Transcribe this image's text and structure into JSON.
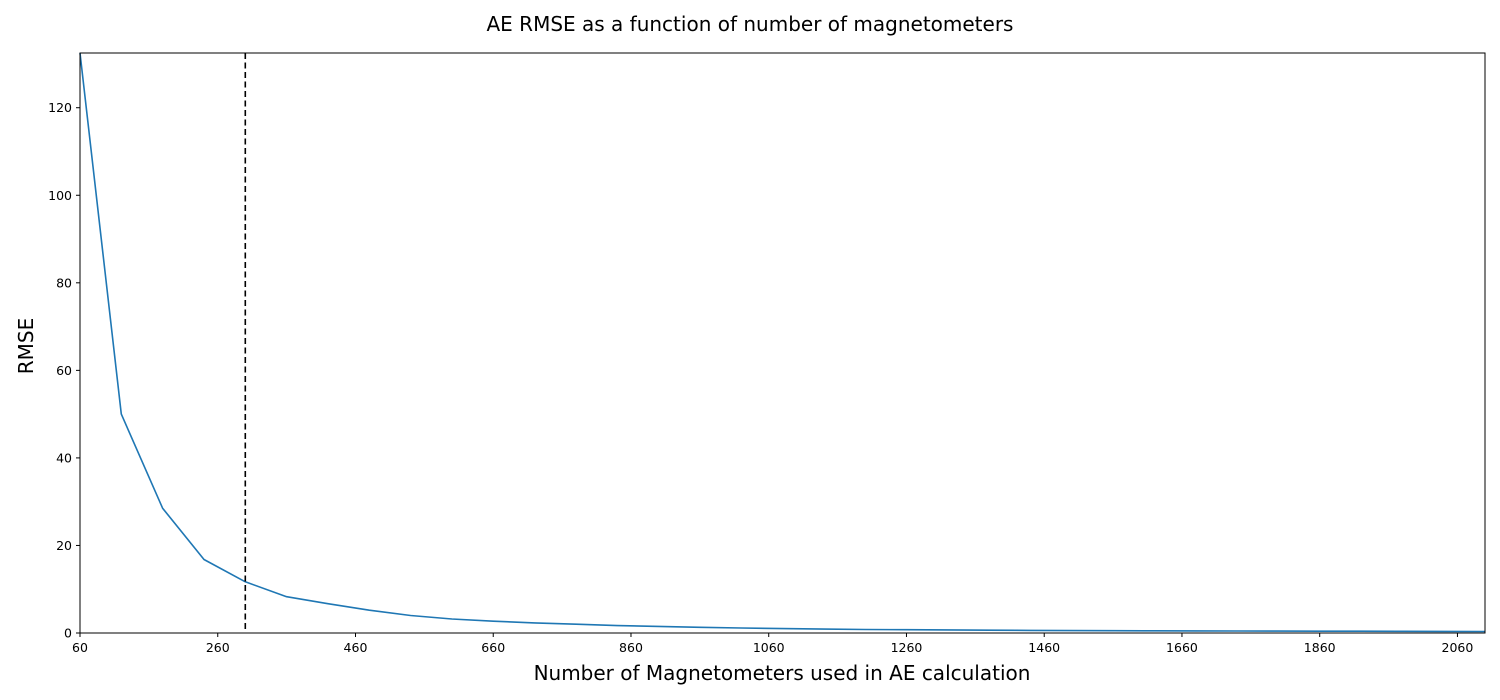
{
  "chart_data": {
    "type": "line",
    "title": "AE RMSE as a function of number of magnetometers",
    "xlabel": "Number of Magnetometers used in AE calculation",
    "ylabel": "RMSE",
    "xlim": [
      60,
      2100
    ],
    "ylim": [
      0,
      132.5
    ],
    "x_ticks": [
      60,
      260,
      460,
      660,
      860,
      1060,
      1260,
      1460,
      1660,
      1860,
      2060
    ],
    "y_ticks": [
      0,
      20,
      40,
      60,
      80,
      100,
      120
    ],
    "grid": false,
    "series": [
      {
        "color": "#1f77b4",
        "x": [
          60,
          120,
          180,
          240,
          300,
          360,
          420,
          480,
          540,
          600,
          660,
          720,
          780,
          840,
          900,
          960,
          1020,
          1080,
          1140,
          1200,
          1260,
          1320,
          1380,
          1440,
          1500,
          1560,
          1620,
          1680,
          1740,
          1800,
          1860,
          1920,
          1980,
          2040,
          2100
        ],
        "y": [
          132.5,
          50,
          28.5,
          16.8,
          11.7,
          8.3,
          6.7,
          5.2,
          4.0,
          3.2,
          2.7,
          2.3,
          2.0,
          1.7,
          1.5,
          1.3,
          1.15,
          1.0,
          0.9,
          0.8,
          0.75,
          0.7,
          0.65,
          0.6,
          0.55,
          0.52,
          0.5,
          0.48,
          0.46,
          0.44,
          0.42,
          0.4,
          0.38,
          0.37,
          0.35
        ]
      }
    ],
    "reference_line": {
      "orientation": "vertical",
      "x": 300,
      "style": "dashed",
      "color": "#000000"
    }
  }
}
